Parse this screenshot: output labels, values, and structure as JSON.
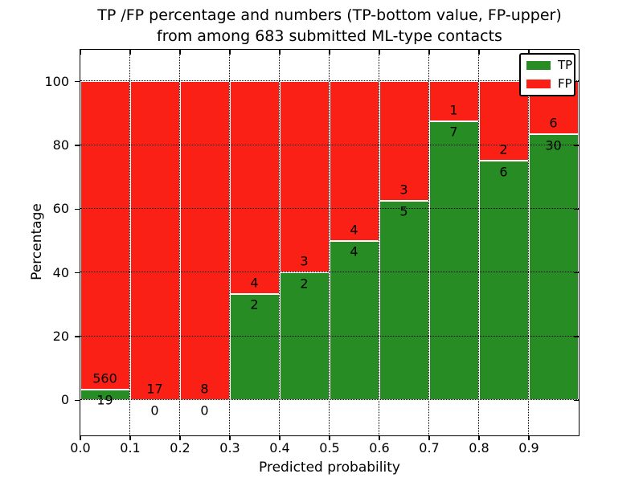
{
  "title": {
    "line1": "TP /FP percentage and numbers (TP-bottom value, FP-upper)",
    "line2": "from among 683 submitted ML-type contacts"
  },
  "axes": {
    "xlabel": "Predicted probability",
    "ylabel": "Percentage",
    "x_ticks": [
      "0.0",
      "0.1",
      "0.2",
      "0.3",
      "0.4",
      "0.5",
      "0.6",
      "0.7",
      "0.8",
      "0.9"
    ],
    "y_ticks": [
      "0",
      "20",
      "40",
      "60",
      "80",
      "100"
    ]
  },
  "legend": {
    "items": [
      {
        "label": "TP",
        "color": "#268c23"
      },
      {
        "label": "FP",
        "color": "#fb2016"
      }
    ]
  },
  "chart_data": {
    "type": "bar",
    "stacked": true,
    "normalized_to_percent": 100,
    "title": "TP /FP percentage and numbers (TP-bottom value, FP-upper)\nfrom among 683 submitted ML-type contacts",
    "xlabel": "Predicted probability",
    "ylabel": "Percentage",
    "total_contacts": 683,
    "bin_edges": [
      0.0,
      0.1,
      0.2,
      0.3,
      0.4,
      0.5,
      0.6,
      0.7,
      0.8,
      0.9,
      1.0
    ],
    "categories": [
      "0.0-0.1",
      "0.1-0.2",
      "0.2-0.3",
      "0.3-0.4",
      "0.4-0.5",
      "0.5-0.6",
      "0.6-0.7",
      "0.7-0.8",
      "0.8-0.9",
      "0.9-1.0"
    ],
    "series": [
      {
        "name": "TP",
        "color": "#268c23",
        "counts": [
          19,
          0,
          0,
          2,
          2,
          4,
          5,
          7,
          6,
          30
        ]
      },
      {
        "name": "FP",
        "color": "#fb2016",
        "counts": [
          560,
          17,
          8,
          4,
          3,
          4,
          3,
          1,
          2,
          6
        ]
      }
    ],
    "tp_percent": [
      3.28,
      0.0,
      0.0,
      33.33,
      40.0,
      50.0,
      62.5,
      87.5,
      75.0,
      83.33
    ],
    "xlim": [
      0.0,
      1.0
    ],
    "ylim": [
      -11,
      110
    ],
    "y_gridlines": [
      0,
      20,
      40,
      60,
      80,
      100
    ],
    "x_gridlines": [
      0.1,
      0.2,
      0.3,
      0.4,
      0.5,
      0.6,
      0.7,
      0.8,
      0.9
    ],
    "grid": true,
    "grid_style": "dotted",
    "legend_position": "upper right",
    "bar_edge_color": "#ffffff"
  }
}
